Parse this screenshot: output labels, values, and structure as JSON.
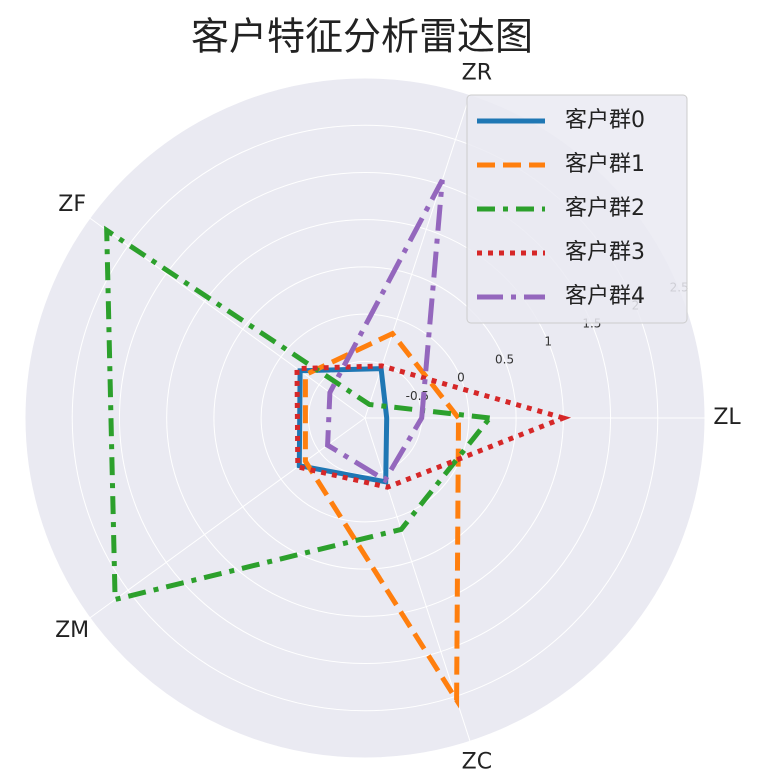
{
  "chart_data": {
    "type": "radar",
    "title": "客户特征分析雷达图",
    "categories": [
      "ZL",
      "ZR",
      "ZF",
      "ZM",
      "ZC"
    ],
    "ylim": [
      -1.1,
      2.5
    ],
    "yticks": [
      -0.5,
      0.0,
      0.5,
      1.0,
      1.5,
      2.0,
      2.5
    ],
    "grid": true,
    "legend": "upper right",
    "series": [
      {
        "name": "客户群0",
        "color": "#1f77b4",
        "linestyle": "solid",
        "values": [
          -0.87,
          -0.55,
          -0.25,
          -0.24,
          -0.39
        ]
      },
      {
        "name": "客户群1",
        "color": "#ff7f0e",
        "linestyle": "dashed",
        "values": [
          -0.11,
          -0.16,
          -0.32,
          -0.32,
          2.04
        ]
      },
      {
        "name": "客户群2",
        "color": "#2ca02c",
        "linestyle": "dashdot",
        "values": [
          0.22,
          -0.95,
          2.28,
          2.17,
          0.14
        ]
      },
      {
        "name": "客户群3",
        "color": "#d62728",
        "linestyle": "dotted",
        "values": [
          1.0,
          -0.52,
          -0.21,
          -0.22,
          -0.33
        ]
      },
      {
        "name": "客户群4",
        "color": "#9467bd",
        "linestyle": "longdashdot",
        "values": [
          -0.5,
          1.55,
          -0.64,
          -0.61,
          -0.41
        ]
      }
    ]
  }
}
